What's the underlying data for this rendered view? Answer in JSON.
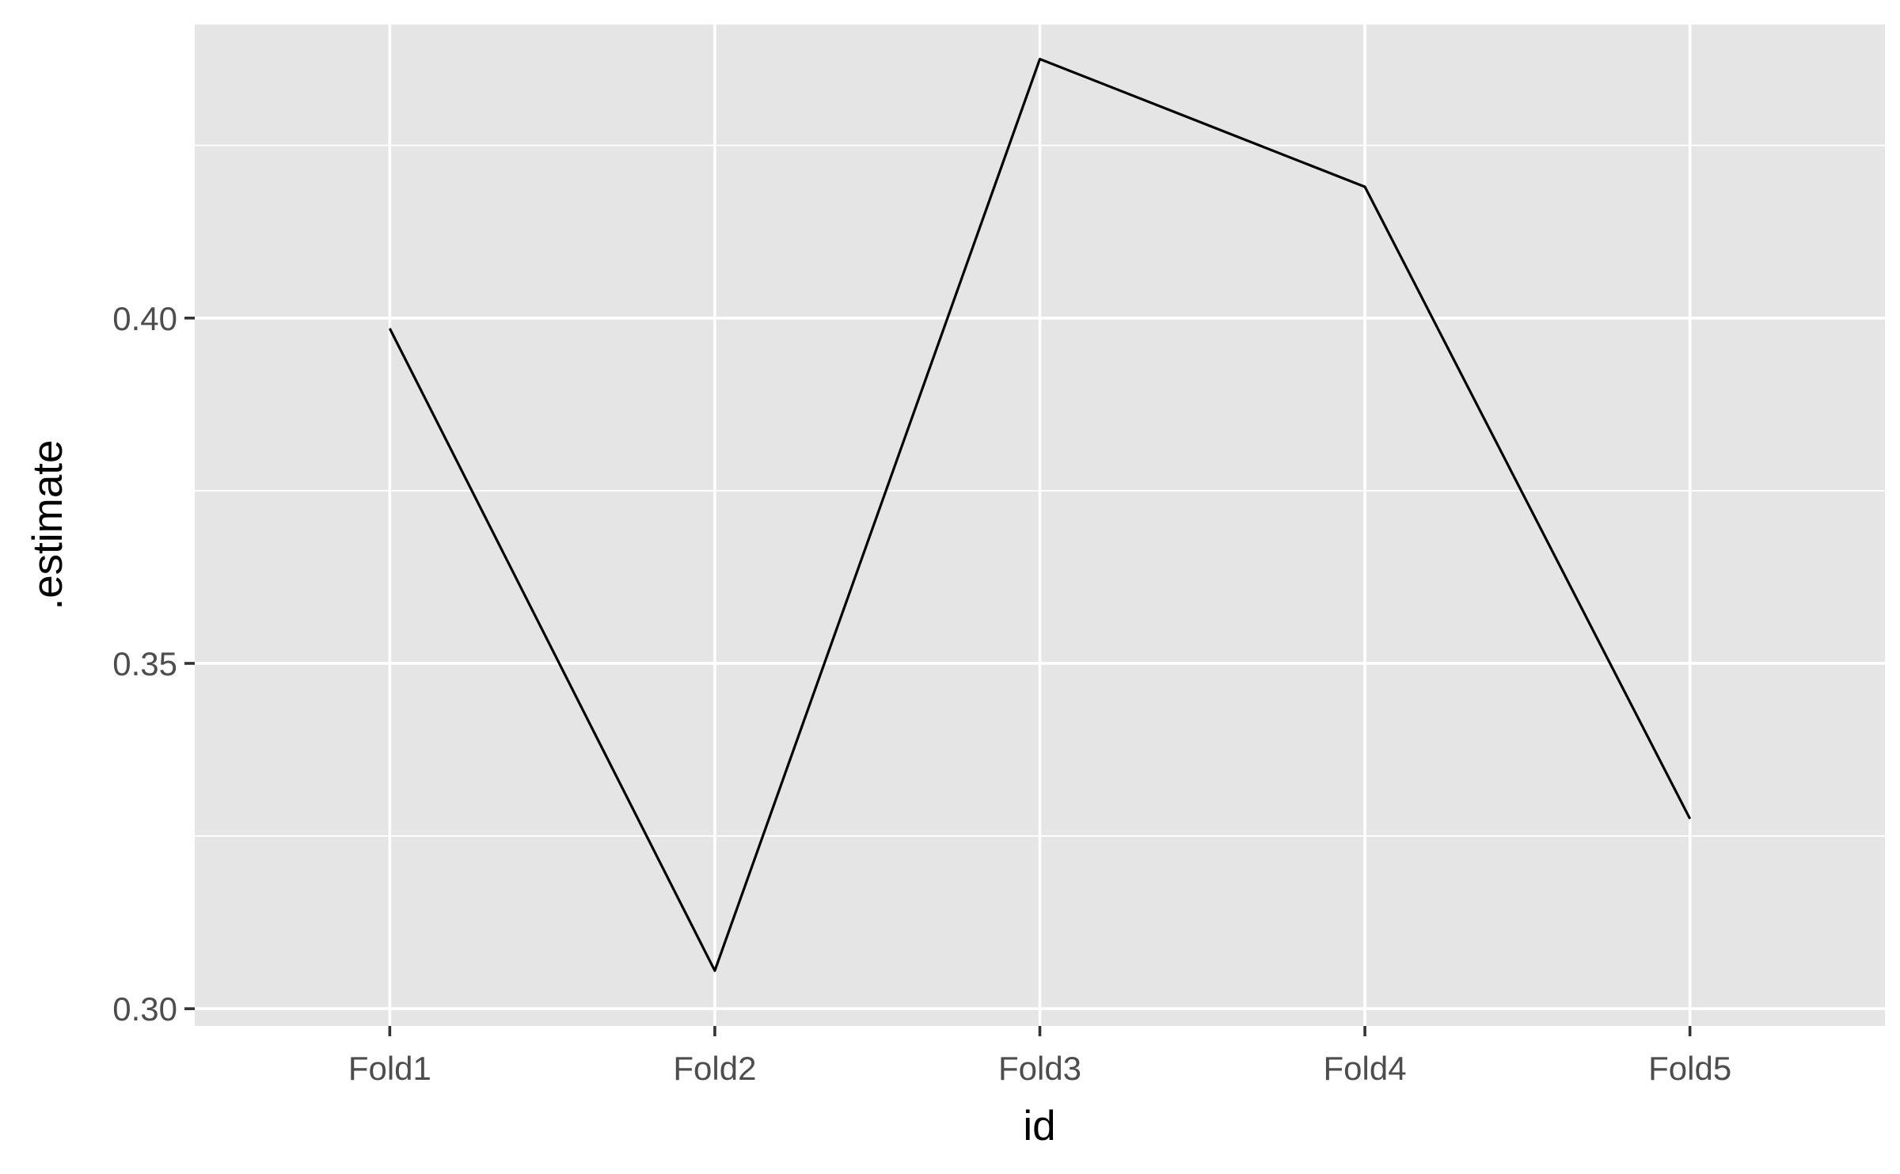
{
  "chart_data": {
    "type": "line",
    "categories": [
      "Fold1",
      "Fold2",
      "Fold3",
      "Fold4",
      "Fold5"
    ],
    "series": [
      {
        "values": [
          0.3985,
          0.3055,
          0.4375,
          0.419,
          0.3275
        ]
      }
    ],
    "xlabel": "id",
    "ylabel": ".estimate",
    "ylim": [
      0.2975,
      0.4425
    ],
    "y_major_ticks": [
      0.3,
      0.35,
      0.4
    ],
    "y_tick_labels": [
      "0.30",
      "0.35",
      "0.40"
    ],
    "y_minor_ticks": [
      0.325,
      0.375,
      0.425
    ],
    "grid": true,
    "legend": "none",
    "colors": {
      "panel_background": "#e5e5e5",
      "grid": "#ffffff",
      "line": "#000000",
      "tick_label": "#4d4d4d"
    }
  }
}
